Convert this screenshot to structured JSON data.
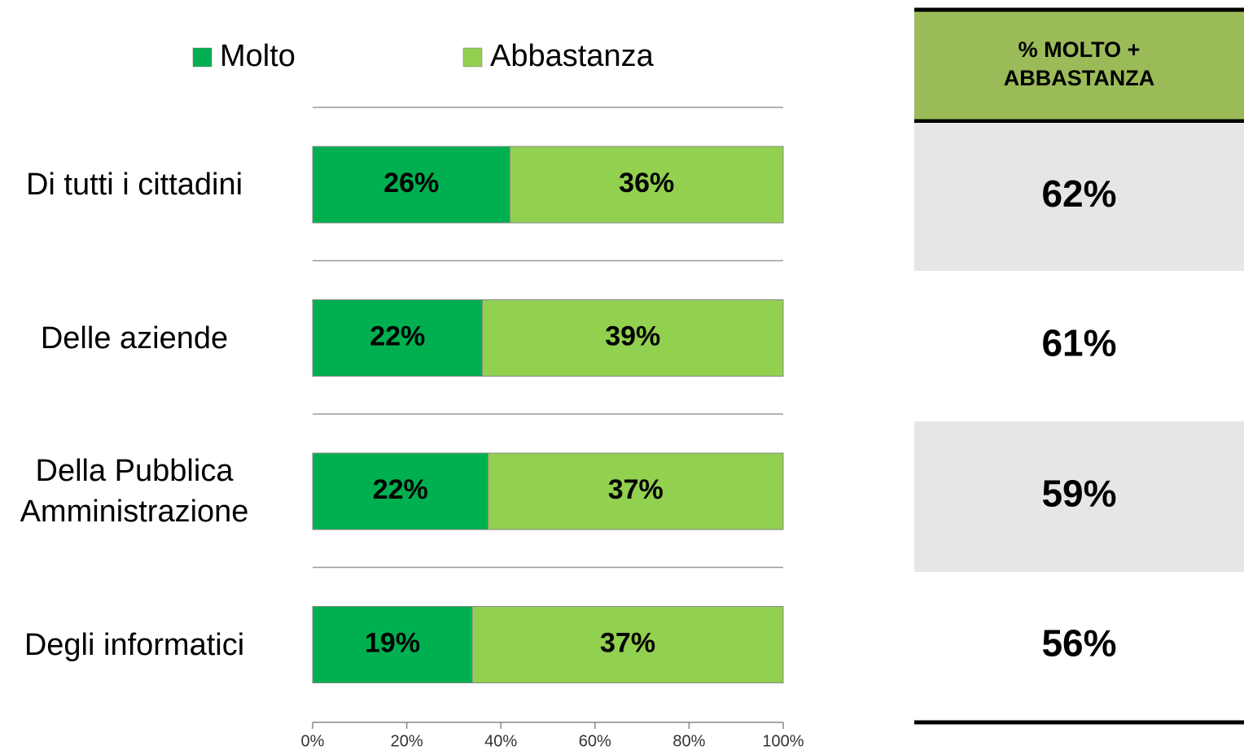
{
  "chart_data": {
    "type": "bar",
    "orientation": "horizontal",
    "stacked": "percent",
    "categories": [
      "Di tutti i cittadini",
      "Delle aziende",
      "Della Pubblica Amministrazione",
      "Degli informatici"
    ],
    "series": [
      {
        "name": "Molto",
        "color": "#00b050",
        "values": [
          26,
          22,
          22,
          19
        ],
        "value_labels": [
          "26%",
          "22%",
          "22%",
          "19%"
        ]
      },
      {
        "name": "Abbastanza",
        "color": "#92d050",
        "values": [
          36,
          39,
          37,
          37
        ],
        "value_labels": [
          "36%",
          "39%",
          "37%",
          "37%"
        ]
      }
    ],
    "xlim": [
      0,
      100
    ],
    "xticks": [
      {
        "value": 0,
        "label": "0%"
      },
      {
        "value": 20,
        "label": "20%"
      },
      {
        "value": 40,
        "label": "40%"
      },
      {
        "value": 60,
        "label": "60%"
      },
      {
        "value": 80,
        "label": "80%"
      },
      {
        "value": 100,
        "label": "100%"
      }
    ],
    "legend": "top"
  },
  "table": {
    "header": "% MOLTO + ABBASTANZA",
    "header_color": "#9bbb59",
    "rows": [
      "62%",
      "61%",
      "59%",
      "56%"
    ]
  }
}
